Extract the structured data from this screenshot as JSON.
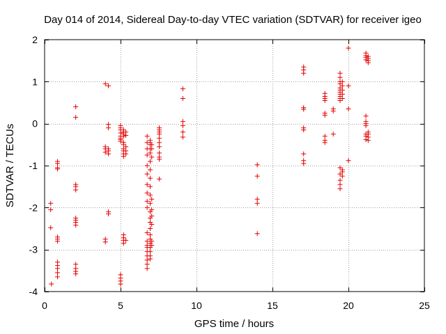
{
  "chart_data": {
    "type": "scatter",
    "title": "Day 014 of 2014, Sidereal Day-to-day VTEC variation (SDTVAR) for receiver igeo",
    "xlabel": "GPS time / hours",
    "ylabel": "SDTVAR / TECUs",
    "xlim": [
      0,
      25
    ],
    "ylim": [
      -4,
      2
    ],
    "xticks": [
      0,
      5,
      10,
      15,
      20,
      25
    ],
    "yticks": [
      -4,
      -3,
      -2,
      -1,
      0,
      1,
      2
    ],
    "grid": true,
    "marker": "+",
    "series_color": "#e60000",
    "series": [
      {
        "name": "SDTVAR",
        "points": [
          [
            0.4,
            -1.9
          ],
          [
            0.4,
            -2.05
          ],
          [
            0.4,
            -2.48
          ],
          [
            0.45,
            -3.82
          ],
          [
            0.85,
            -0.9
          ],
          [
            0.85,
            -0.95
          ],
          [
            0.85,
            -1.05
          ],
          [
            0.85,
            -1.08
          ],
          [
            0.85,
            -2.7
          ],
          [
            0.85,
            -2.75
          ],
          [
            0.85,
            -2.8
          ],
          [
            0.85,
            -3.3
          ],
          [
            0.85,
            -3.38
          ],
          [
            0.85,
            -3.45
          ],
          [
            0.85,
            -3.55
          ],
          [
            0.85,
            -3.65
          ],
          [
            2.05,
            0.4
          ],
          [
            2.05,
            0.15
          ],
          [
            2.05,
            -1.45
          ],
          [
            2.05,
            -1.5
          ],
          [
            2.05,
            -1.58
          ],
          [
            2.05,
            -2.25
          ],
          [
            2.05,
            -2.3
          ],
          [
            2.05,
            -2.35
          ],
          [
            2.05,
            -2.42
          ],
          [
            2.05,
            -3.35
          ],
          [
            2.05,
            -3.45
          ],
          [
            2.05,
            -3.52
          ],
          [
            2.05,
            -3.58
          ],
          [
            4.0,
            0.95
          ],
          [
            4.0,
            -0.55
          ],
          [
            4.0,
            -0.6
          ],
          [
            4.0,
            -0.68
          ],
          [
            4.0,
            -2.75
          ],
          [
            4.0,
            -2.82
          ],
          [
            4.2,
            0.9
          ],
          [
            4.2,
            -0.02
          ],
          [
            4.2,
            -0.1
          ],
          [
            4.2,
            -0.6
          ],
          [
            4.2,
            -0.65
          ],
          [
            4.2,
            -0.72
          ],
          [
            4.2,
            -2.1
          ],
          [
            4.2,
            -2.15
          ],
          [
            5.0,
            -0.05
          ],
          [
            5.0,
            -0.1
          ],
          [
            5.0,
            -0.15
          ],
          [
            5.0,
            -0.22
          ],
          [
            5.0,
            -0.3
          ],
          [
            5.0,
            -0.35
          ],
          [
            5.0,
            -0.38
          ],
          [
            5.0,
            -0.42
          ],
          [
            5.0,
            -3.6
          ],
          [
            5.0,
            -3.68
          ],
          [
            5.0,
            -3.75
          ],
          [
            5.0,
            -3.82
          ],
          [
            5.2,
            -0.15
          ],
          [
            5.2,
            -0.2
          ],
          [
            5.2,
            -0.25
          ],
          [
            5.2,
            -0.3
          ],
          [
            5.2,
            -0.45
          ],
          [
            5.2,
            -0.5
          ],
          [
            5.2,
            -0.6
          ],
          [
            5.2,
            -0.65
          ],
          [
            5.2,
            -0.72
          ],
          [
            5.2,
            -0.78
          ],
          [
            5.2,
            -2.65
          ],
          [
            5.2,
            -2.72
          ],
          [
            5.2,
            -2.78
          ],
          [
            5.2,
            -2.85
          ],
          [
            5.35,
            -0.2
          ],
          [
            5.35,
            -0.28
          ],
          [
            5.35,
            -0.55
          ],
          [
            5.35,
            -0.65
          ],
          [
            5.35,
            -0.72
          ],
          [
            5.35,
            -2.78
          ],
          [
            6.75,
            -0.3
          ],
          [
            6.75,
            -0.45
          ],
          [
            6.75,
            -0.6
          ],
          [
            6.75,
            -0.75
          ],
          [
            6.75,
            -1.0
          ],
          [
            6.75,
            -1.2
          ],
          [
            6.75,
            -1.45
          ],
          [
            6.75,
            -1.65
          ],
          [
            6.75,
            -1.85
          ],
          [
            6.75,
            -2.0
          ],
          [
            6.75,
            -2.6
          ],
          [
            6.75,
            -2.8
          ],
          [
            6.75,
            -2.9
          ],
          [
            6.75,
            -2.95
          ],
          [
            6.75,
            -3.05
          ],
          [
            6.75,
            -3.15
          ],
          [
            6.75,
            -3.25
          ],
          [
            6.75,
            -3.35
          ],
          [
            6.75,
            -3.45
          ],
          [
            6.95,
            -0.4
          ],
          [
            6.95,
            -0.45
          ],
          [
            6.95,
            -0.5
          ],
          [
            6.95,
            -0.6
          ],
          [
            6.95,
            -0.7
          ],
          [
            6.95,
            -0.9
          ],
          [
            6.95,
            -1.1
          ],
          [
            6.95,
            -1.3
          ],
          [
            6.95,
            -1.5
          ],
          [
            6.95,
            -1.7
          ],
          [
            6.95,
            -1.9
          ],
          [
            6.95,
            -2.1
          ],
          [
            6.95,
            -2.25
          ],
          [
            6.95,
            -2.35
          ],
          [
            6.95,
            -2.5
          ],
          [
            6.95,
            -2.65
          ],
          [
            6.95,
            -2.75
          ],
          [
            6.95,
            -2.85
          ],
          [
            6.95,
            -2.95
          ],
          [
            6.95,
            -3.05
          ],
          [
            6.95,
            -3.15
          ],
          [
            6.95,
            -3.22
          ],
          [
            7.05,
            -0.5
          ],
          [
            7.05,
            -0.6
          ],
          [
            7.05,
            -0.8
          ],
          [
            7.05,
            -1.8
          ],
          [
            7.05,
            -2.05
          ],
          [
            7.05,
            -2.2
          ],
          [
            7.05,
            -2.4
          ],
          [
            7.05,
            -2.8
          ],
          [
            7.05,
            -2.9
          ],
          [
            7.55,
            -0.1
          ],
          [
            7.55,
            -0.15
          ],
          [
            7.55,
            -0.2
          ],
          [
            7.55,
            -0.25
          ],
          [
            7.55,
            -0.35
          ],
          [
            7.55,
            -0.45
          ],
          [
            7.55,
            -0.55
          ],
          [
            7.55,
            -0.7
          ],
          [
            7.55,
            -0.8
          ],
          [
            7.55,
            -0.85
          ],
          [
            7.55,
            -1.32
          ],
          [
            9.1,
            0.83
          ],
          [
            9.1,
            0.6
          ],
          [
            9.1,
            0.05
          ],
          [
            9.1,
            -0.05
          ],
          [
            9.1,
            -0.2
          ],
          [
            9.1,
            -0.32
          ],
          [
            14.0,
            -0.98
          ],
          [
            14.0,
            -1.25
          ],
          [
            14.0,
            -1.8
          ],
          [
            14.0,
            -1.9
          ],
          [
            14.0,
            -2.62
          ],
          [
            17.05,
            1.35
          ],
          [
            17.05,
            1.28
          ],
          [
            17.05,
            1.2
          ],
          [
            17.05,
            0.38
          ],
          [
            17.05,
            0.34
          ],
          [
            17.05,
            -0.1
          ],
          [
            17.05,
            -0.15
          ],
          [
            17.05,
            -0.72
          ],
          [
            17.05,
            -0.88
          ],
          [
            17.05,
            -0.95
          ],
          [
            18.45,
            0.72
          ],
          [
            18.45,
            0.65
          ],
          [
            18.45,
            0.6
          ],
          [
            18.45,
            0.55
          ],
          [
            18.45,
            0.25
          ],
          [
            18.45,
            0.2
          ],
          [
            18.45,
            -0.3
          ],
          [
            18.45,
            -0.4
          ],
          [
            18.45,
            -0.45
          ],
          [
            19.0,
            0.35
          ],
          [
            19.0,
            0.3
          ],
          [
            19.0,
            -0.25
          ],
          [
            19.45,
            1.2
          ],
          [
            19.45,
            1.1
          ],
          [
            19.45,
            1.0
          ],
          [
            19.45,
            0.95
          ],
          [
            19.45,
            0.85
          ],
          [
            19.45,
            0.8
          ],
          [
            19.45,
            0.75
          ],
          [
            19.45,
            0.7
          ],
          [
            19.45,
            0.65
          ],
          [
            19.45,
            0.6
          ],
          [
            19.45,
            0.55
          ],
          [
            19.45,
            -1.05
          ],
          [
            19.45,
            -1.2
          ],
          [
            19.45,
            -1.35
          ],
          [
            19.45,
            -1.45
          ],
          [
            19.45,
            -1.55
          ],
          [
            19.6,
            1.0
          ],
          [
            19.6,
            0.9
          ],
          [
            19.6,
            0.8
          ],
          [
            19.6,
            0.7
          ],
          [
            19.6,
            0.6
          ],
          [
            19.6,
            -1.1
          ],
          [
            19.6,
            -1.15
          ],
          [
            19.6,
            -1.25
          ],
          [
            20.0,
            1.8
          ],
          [
            20.0,
            0.9
          ],
          [
            20.0,
            0.35
          ],
          [
            20.0,
            -0.88
          ],
          [
            21.15,
            1.68
          ],
          [
            21.15,
            1.62
          ],
          [
            21.15,
            1.58
          ],
          [
            21.15,
            1.52
          ],
          [
            21.15,
            0.18
          ],
          [
            21.15,
            0.05
          ],
          [
            21.15,
            0.0
          ],
          [
            21.15,
            -0.05
          ],
          [
            21.15,
            -0.25
          ],
          [
            21.15,
            -0.3
          ],
          [
            21.15,
            -0.38
          ],
          [
            21.3,
            1.6
          ],
          [
            21.3,
            1.55
          ],
          [
            21.3,
            1.5
          ],
          [
            21.3,
            1.45
          ],
          [
            21.3,
            -0.2
          ],
          [
            21.3,
            -0.25
          ],
          [
            21.3,
            -0.32
          ],
          [
            21.3,
            -0.4
          ]
        ]
      }
    ]
  }
}
